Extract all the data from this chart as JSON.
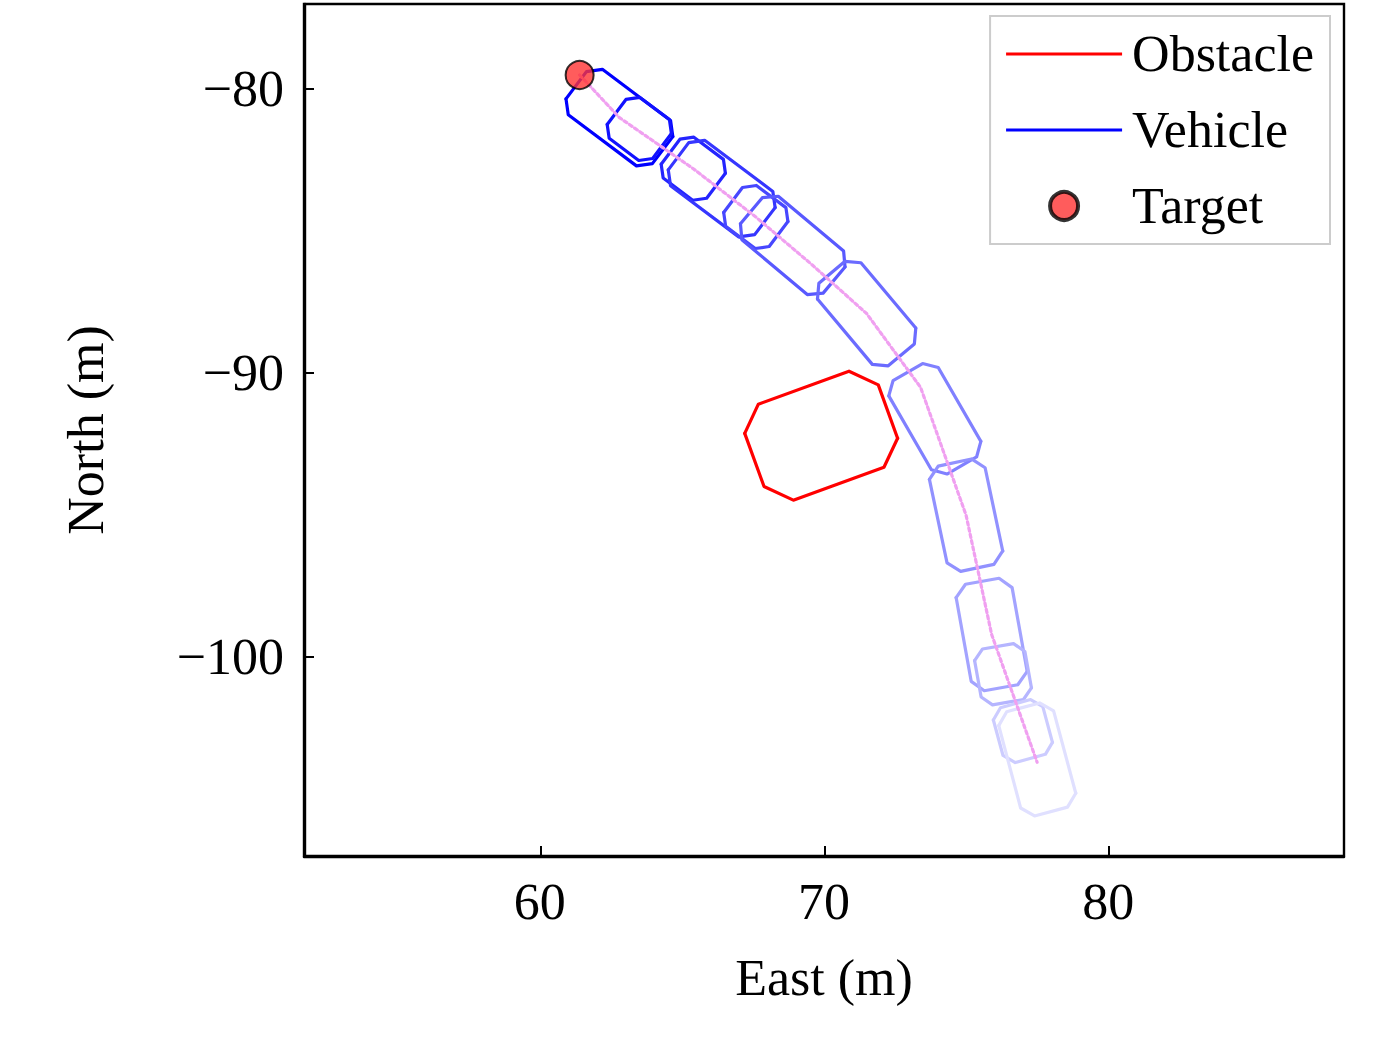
{
  "chart_data": {
    "type": "line",
    "xlabel": "East (m)",
    "ylabel": "North (m)",
    "xlim": [
      51.7,
      88.3
    ],
    "ylim": [
      -107,
      -77
    ],
    "xticks": [
      60,
      70,
      80
    ],
    "yticks": [
      -80,
      -90,
      -100
    ],
    "grid": false,
    "legend": "top right",
    "series": [
      {
        "name": "Obstacle",
        "color": "#ff0000",
        "x": [
          67.21,
          67.69,
          70.88,
          71.91,
          72.59
        ],
        "values": [
          -92.12,
          -91.09,
          -89.93,
          -90.41,
          -92.29
        ]
      },
      {
        "color": "#ff0000",
        "x": [
          67.21,
          67.89,
          68.92,
          72.11,
          72.59
        ],
        "values": [
          -92.12,
          -93.99,
          -94.47,
          -93.31,
          -92.29
        ]
      },
      {
        "name": "Vehicle",
        "color": "#0000ff",
        "x": [
          60.92,
          61.64,
          62.2,
          64.6,
          64.68
        ],
        "values": [
          -80.34,
          -79.38,
          -79.3,
          -81.1,
          -81.67
        ]
      },
      {
        "color": "#0000ff",
        "x": [
          60.92,
          61.0,
          63.4,
          63.96,
          64.68
        ],
        "values": [
          -80.34,
          -80.9,
          -82.7,
          -82.62,
          -81.67
        ]
      },
      {
        "color": "#1212ff",
        "x": [
          62.37,
          63.03,
          63.52,
          64.56,
          64.63
        ],
        "values": [
          -81.24,
          -80.36,
          -80.29,
          -81.07,
          -81.56
        ]
      },
      {
        "color": "#1212ff",
        "x": [
          62.37,
          62.44,
          63.48,
          63.97,
          64.63
        ],
        "values": [
          -81.24,
          -81.73,
          -82.51,
          -82.44,
          -81.56
        ]
      },
      {
        "color": "#2424ff",
        "x": [
          64.27,
          64.93,
          65.42,
          66.46,
          66.53
        ],
        "values": [
          -82.64,
          -81.76,
          -81.69,
          -82.47,
          -82.96
        ]
      },
      {
        "color": "#2424ff",
        "x": [
          64.27,
          64.34,
          65.38,
          65.87,
          66.53
        ],
        "values": [
          -82.64,
          -83.13,
          -83.91,
          -83.84,
          -82.96
        ]
      },
      {
        "color": "#3636ff",
        "x": [
          64.52,
          65.24,
          65.8,
          68.2,
          68.28
        ],
        "values": [
          -82.84,
          -81.88,
          -81.8,
          -83.6,
          -84.17
        ]
      },
      {
        "color": "#3636ff",
        "x": [
          64.52,
          64.6,
          67.0,
          67.56,
          68.28
        ],
        "values": [
          -82.84,
          -83.4,
          -85.2,
          -85.12,
          -84.17
        ]
      },
      {
        "color": "#4747ff",
        "x": [
          66.47,
          67.13,
          67.62,
          68.66,
          68.73
        ],
        "values": [
          -84.34,
          -83.46,
          -83.39,
          -84.17,
          -84.66
        ]
      },
      {
        "color": "#4747ff",
        "x": [
          66.47,
          66.54,
          67.58,
          68.07,
          68.73
        ],
        "values": [
          -84.34,
          -84.83,
          -85.61,
          -85.54,
          -84.66
        ]
      },
      {
        "color": "#5959ff",
        "x": [
          67.06,
          67.83,
          68.39,
          70.69,
          70.74
        ],
        "values": [
          -84.74,
          -83.82,
          -83.77,
          -85.7,
          -86.26
        ]
      },
      {
        "color": "#5959ff",
        "x": [
          67.06,
          67.11,
          69.41,
          69.97,
          70.74
        ],
        "values": [
          -84.74,
          -85.3,
          -87.23,
          -87.18,
          -86.26
        ]
      },
      {
        "color": "#6b6bff",
        "x": [
          69.77,
          69.82,
          70.74,
          71.3,
          73.23
        ],
        "values": [
          -87.39,
          -86.83,
          -86.06,
          -86.11,
          -88.41
        ]
      },
      {
        "color": "#6b6bff",
        "x": [
          69.77,
          71.7,
          72.26,
          73.18,
          73.23
        ],
        "values": [
          -87.39,
          -89.69,
          -89.74,
          -88.97,
          -88.41
        ]
      },
      {
        "color": "#8080ff",
        "x": [
          72.28,
          72.43,
          73.47,
          74.02,
          75.52
        ],
        "values": [
          -90.8,
          -90.26,
          -89.66,
          -89.8,
          -92.4
        ]
      },
      {
        "color": "#8080ff",
        "x": [
          72.28,
          73.78,
          74.33,
          75.37,
          75.52
        ],
        "values": [
          -90.8,
          -93.4,
          -93.55,
          -92.95,
          -92.4
        ]
      },
      {
        "color": "#9191ff",
        "x": [
          73.71,
          74.02,
          75.19,
          75.67,
          76.29
        ],
        "values": [
          -93.74,
          -93.27,
          -93.02,
          -93.33,
          -96.26
        ]
      },
      {
        "color": "#9191ff",
        "x": [
          73.71,
          74.33,
          74.81,
          75.98,
          76.29
        ],
        "values": [
          -93.74,
          -96.68,
          -96.98,
          -96.73,
          -96.26
        ]
      },
      {
        "color": "#a3a3ff",
        "x": [
          74.65,
          74.98,
          76.16,
          76.62,
          77.15
        ],
        "values": [
          -97.9,
          -97.43,
          -97.22,
          -97.55,
          -100.5
        ]
      },
      {
        "color": "#a3a3ff",
        "x": [
          74.65,
          75.18,
          75.64,
          76.82,
          77.15
        ],
        "values": [
          -97.9,
          -100.85,
          -101.18,
          -100.97,
          -100.5
        ]
      },
      {
        "color": "#b5b5ff",
        "x": [
          75.3,
          75.58,
          76.67,
          77.07,
          77.3
        ],
        "values": [
          -100.12,
          -99.71,
          -99.52,
          -99.8,
          -101.08
        ]
      },
      {
        "color": "#b5b5ff",
        "x": [
          75.3,
          75.53,
          75.93,
          77.02,
          77.3
        ],
        "values": [
          -100.12,
          -101.4,
          -101.68,
          -101.49,
          -101.08
        ]
      },
      {
        "color": "#ccccff",
        "x": [
          75.96,
          76.21,
          77.27,
          77.7,
          78.04
        ],
        "values": [
          -102.21,
          -101.78,
          -101.49,
          -101.74,
          -103.0
        ]
      },
      {
        "color": "#ccccff",
        "x": [
          75.96,
          76.3,
          76.73,
          77.79,
          78.04
        ],
        "values": [
          -102.21,
          -103.46,
          -103.71,
          -103.42,
          -103.0
        ]
      },
      {
        "color": "#e0e0ff",
        "x": [
          76.15,
          76.43,
          77.59,
          78.08,
          78.86
        ],
        "values": [
          -102.41,
          -101.92,
          -101.61,
          -101.89,
          -104.79
        ]
      },
      {
        "color": "#e0e0ff",
        "x": [
          76.15,
          76.92,
          77.41,
          78.57,
          78.86
        ],
        "values": [
          -102.41,
          -105.31,
          -105.59,
          -105.28,
          -104.79
        ]
      },
      {
        "color": "#f0a0f0",
        "line_style": "dotted",
        "x": [
          61.4,
          62.8,
          65.4,
          67.6,
          69.6,
          71.5,
          73.4,
          75.0,
          75.9,
          77.5
        ],
        "values": [
          -79.5,
          -81.0,
          -82.8,
          -84.5,
          -86.2,
          -87.9,
          -90.5,
          -95.0,
          -99.2,
          -103.7
        ]
      },
      {
        "name": "Target",
        "type": "scatter",
        "marker": "circle",
        "color": "#ff3333",
        "x": [
          61.4
        ],
        "values": [
          -79.5
        ]
      }
    ]
  }
}
